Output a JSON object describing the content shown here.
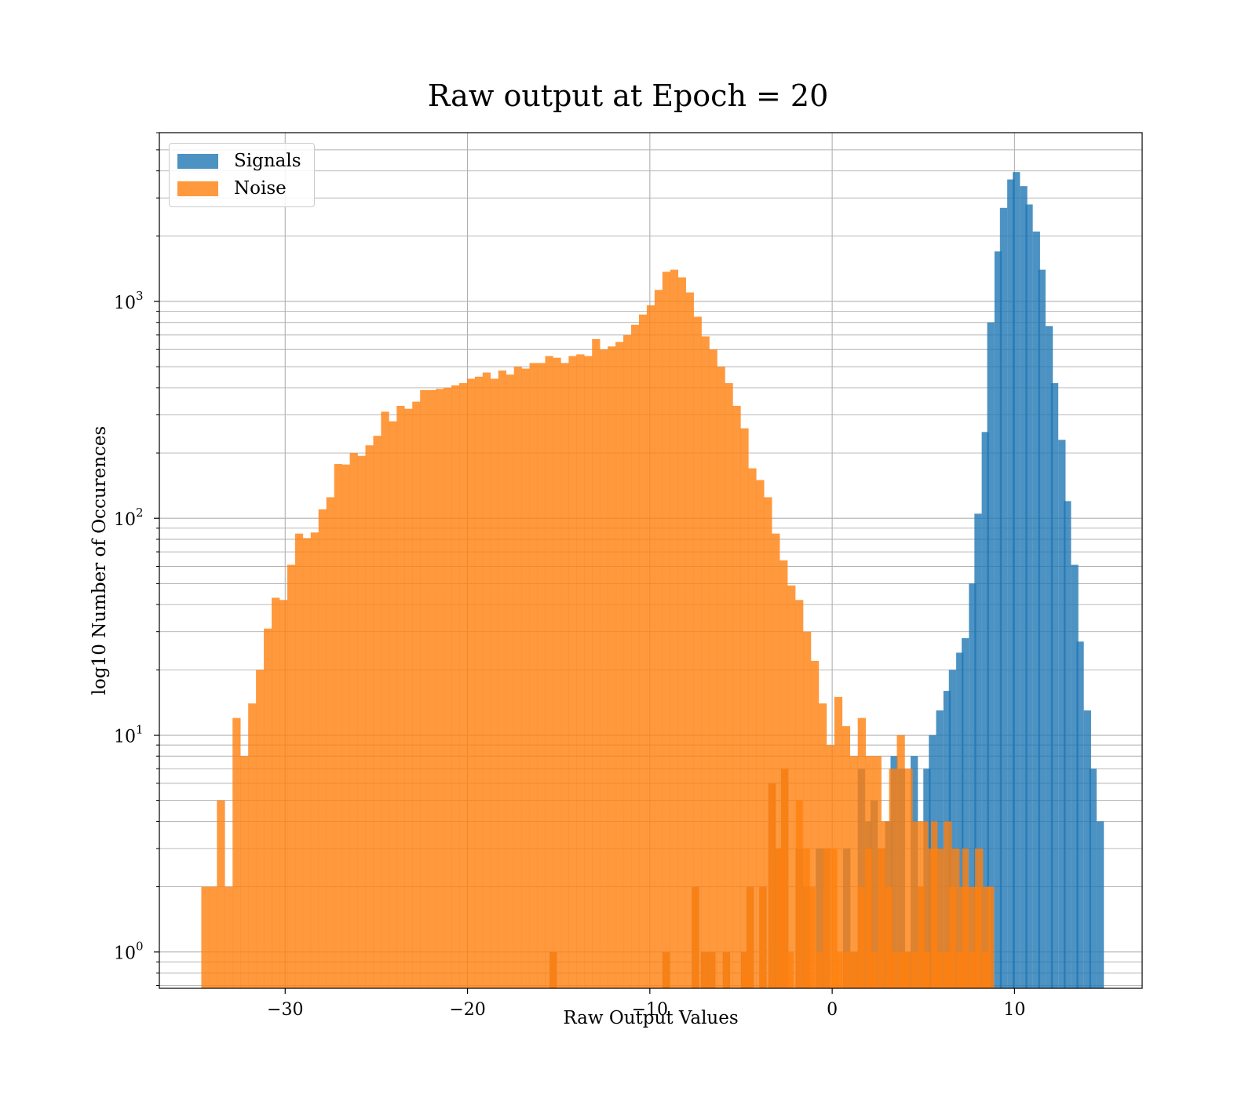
{
  "chart_data": {
    "type": "bar",
    "title": "Raw output at Epoch = 20",
    "xlabel": "Raw Output Values",
    "ylabel": "log10 Number of Occurences",
    "yscale": "log",
    "xlim": [
      -36.9,
      17.0
    ],
    "ylim": [
      0.68,
      6000
    ],
    "x_ticks": [
      -30,
      -20,
      -10,
      0,
      10
    ],
    "x_tick_labels": [
      "−30",
      "−20",
      "−10",
      "0",
      "10"
    ],
    "y_ticks": [
      1,
      10,
      100,
      1000
    ],
    "y_tick_labels": [
      {
        "base": "10",
        "exp": "0"
      },
      {
        "base": "10",
        "exp": "1"
      },
      {
        "base": "10",
        "exp": "2"
      },
      {
        "base": "10",
        "exp": "3"
      }
    ],
    "grid": true,
    "legend_position": "upper-left",
    "series": [
      {
        "name": "Signals",
        "color": "#1f77b4",
        "bin_width": 0.4,
        "bins": [
          {
            "x": -15.3,
            "y": 1
          },
          {
            "x": -9.1,
            "y": 1
          },
          {
            "x": -7.5,
            "y": 2
          },
          {
            "x": -7.0,
            "y": 1
          },
          {
            "x": -6.6,
            "y": 1
          },
          {
            "x": -5.8,
            "y": 1
          },
          {
            "x": -4.8,
            "y": 1
          },
          {
            "x": -4.5,
            "y": 2
          },
          {
            "x": -3.8,
            "y": 2
          },
          {
            "x": -3.3,
            "y": 6
          },
          {
            "x": -2.9,
            "y": 3
          },
          {
            "x": -2.6,
            "y": 7
          },
          {
            "x": -1.8,
            "y": 3
          },
          {
            "x": -1.4,
            "y": 2
          },
          {
            "x": -0.7,
            "y": 3
          },
          {
            "x": -0.3,
            "y": 3
          },
          {
            "x": 0.8,
            "y": 3
          },
          {
            "x": 1.2,
            "y": 1
          },
          {
            "x": 1.6,
            "y": 7
          },
          {
            "x": 2.0,
            "y": 4
          },
          {
            "x": 2.3,
            "y": 5
          },
          {
            "x": 2.7,
            "y": 3
          },
          {
            "x": 3.1,
            "y": 4
          },
          {
            "x": 3.4,
            "y": 8
          },
          {
            "x": 3.8,
            "y": 7
          },
          {
            "x": 4.1,
            "y": 1
          },
          {
            "x": 4.5,
            "y": 8
          },
          {
            "x": 4.9,
            "y": 2
          },
          {
            "x": 5.2,
            "y": 7
          },
          {
            "x": 5.5,
            "y": 10
          },
          {
            "x": 5.9,
            "y": 13
          },
          {
            "x": 6.3,
            "y": 16
          },
          {
            "x": 6.6,
            "y": 20
          },
          {
            "x": 7.0,
            "y": 24
          },
          {
            "x": 7.3,
            "y": 28
          },
          {
            "x": 7.7,
            "y": 50
          },
          {
            "x": 8.0,
            "y": 105
          },
          {
            "x": 8.4,
            "y": 250
          },
          {
            "x": 8.7,
            "y": 800
          },
          {
            "x": 9.1,
            "y": 1700
          },
          {
            "x": 9.4,
            "y": 2700
          },
          {
            "x": 9.8,
            "y": 3650
          },
          {
            "x": 10.1,
            "y": 3950
          },
          {
            "x": 10.5,
            "y": 3400
          },
          {
            "x": 10.8,
            "y": 2800
          },
          {
            "x": 11.2,
            "y": 2100
          },
          {
            "x": 11.5,
            "y": 1400
          },
          {
            "x": 11.9,
            "y": 770
          },
          {
            "x": 12.2,
            "y": 420
          },
          {
            "x": 12.6,
            "y": 230
          },
          {
            "x": 12.9,
            "y": 120
          },
          {
            "x": 13.3,
            "y": 61
          },
          {
            "x": 13.6,
            "y": 27
          },
          {
            "x": 14.0,
            "y": 13
          },
          {
            "x": 14.3,
            "y": 7
          },
          {
            "x": 14.7,
            "y": 4
          }
        ]
      },
      {
        "name": "Noise",
        "color": "#ff7f0e",
        "bin_width": 0.4286,
        "bin_start": -34.6,
        "values": [
          2,
          2,
          5,
          2,
          12,
          8,
          14,
          20,
          31,
          43,
          42,
          61,
          85,
          81,
          86,
          110,
          125,
          178,
          177,
          200,
          194,
          217,
          240,
          310,
          280,
          330,
          320,
          345,
          390,
          390,
          395,
          400,
          410,
          420,
          440,
          450,
          470,
          440,
          480,
          460,
          500,
          490,
          520,
          520,
          560,
          550,
          520,
          560,
          570,
          560,
          670,
          600,
          620,
          650,
          700,
          780,
          870,
          960,
          1130,
          1370,
          1400,
          1290,
          1100,
          850,
          690,
          600,
          500,
          420,
          330,
          260,
          170,
          150,
          125,
          85,
          64,
          49,
          42,
          30,
          22,
          14,
          9,
          15,
          11,
          8,
          12,
          8,
          8,
          4,
          7,
          10,
          7,
          4,
          4,
          3,
          3,
          4,
          3,
          2,
          2,
          3,
          2
        ],
        "scattered": [
          {
            "x": -15.3,
            "y": 1
          },
          {
            "x": -9.1,
            "y": 1
          },
          {
            "x": -7.5,
            "y": 2
          },
          {
            "x": -7.0,
            "y": 1
          },
          {
            "x": -6.6,
            "y": 1
          },
          {
            "x": -5.8,
            "y": 1
          },
          {
            "x": -4.8,
            "y": 1
          },
          {
            "x": -4.5,
            "y": 2
          },
          {
            "x": -3.8,
            "y": 2
          },
          {
            "x": -3.3,
            "y": 6
          },
          {
            "x": -2.9,
            "y": 3
          },
          {
            "x": -2.6,
            "y": 7
          },
          {
            "x": -2.3,
            "y": 1
          },
          {
            "x": -1.8,
            "y": 5
          },
          {
            "x": -1.4,
            "y": 3
          },
          {
            "x": -1.1,
            "y": 2
          },
          {
            "x": -0.7,
            "y": 1
          },
          {
            "x": -0.3,
            "y": 3
          },
          {
            "x": 0.1,
            "y": 3
          },
          {
            "x": 0.4,
            "y": 1
          },
          {
            "x": 0.8,
            "y": 1
          },
          {
            "x": 1.2,
            "y": 1
          },
          {
            "x": 1.6,
            "y": 2
          },
          {
            "x": 2.0,
            "y": 3
          },
          {
            "x": 2.3,
            "y": 1
          },
          {
            "x": 2.7,
            "y": 3
          },
          {
            "x": 3.1,
            "y": 2
          },
          {
            "x": 3.4,
            "y": 1
          },
          {
            "x": 3.8,
            "y": 1
          },
          {
            "x": 4.1,
            "y": 1
          },
          {
            "x": 4.5,
            "y": 1
          },
          {
            "x": 4.9,
            "y": 2
          },
          {
            "x": 5.2,
            "y": 1
          },
          {
            "x": 5.6,
            "y": 4
          },
          {
            "x": 5.9,
            "y": 1
          },
          {
            "x": 6.3,
            "y": 1
          },
          {
            "x": 6.6,
            "y": 2
          },
          {
            "x": 7.0,
            "y": 1
          },
          {
            "x": 7.3,
            "y": 3
          },
          {
            "x": 7.7,
            "y": 1
          },
          {
            "x": 8.0,
            "y": 2
          },
          {
            "x": 8.4,
            "y": 1
          },
          {
            "x": 8.7,
            "y": 2
          }
        ]
      }
    ]
  }
}
